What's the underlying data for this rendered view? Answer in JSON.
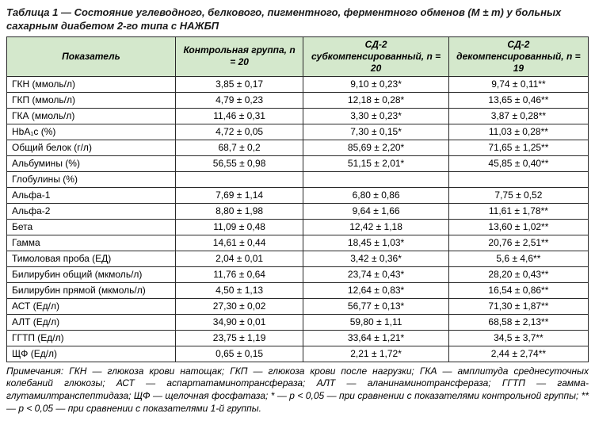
{
  "caption": "Таблица 1 — Состояние углеводного, белкового, пигментного, ферментного обменов (M ± m) у больных сахарным диабетом 2-го типа с НАЖБП",
  "headers": {
    "c0": "Показатель",
    "c1": "Контрольная группа, n = 20",
    "c2": "СД-2 субкомпенсированный, n = 20",
    "c3": "СД-2 декомпенсированный, n = 19"
  },
  "rows": [
    {
      "label": "ГКН (ммоль/л)",
      "v1": "3,85 ± 0,17",
      "v2": "9,10 ± 0,23*",
      "v3": "9,74 ± 0,11**"
    },
    {
      "label": "ГКП (ммоль/л)",
      "v1": "4,79 ± 0,23",
      "v2": "12,18 ± 0,28*",
      "v3": "13,65 ± 0,46**"
    },
    {
      "label": "ГКА (ммоль/л)",
      "v1": "11,46 ± 0,31",
      "v2": "3,30 ± 0,23*",
      "v3": "3,87 ± 0,28**"
    },
    {
      "label": "HbA₁c (%)",
      "v1": "4,72 ± 0,05",
      "v2": "7,30 ± 0,15*",
      "v3": "11,03 ± 0,28**"
    },
    {
      "label": "Общий белок (г/л)",
      "v1": "68,7 ± 0,2",
      "v2": "85,69 ± 2,20*",
      "v3": "71,65 ± 1,25**"
    },
    {
      "label": "Альбумины (%)",
      "v1": "56,55 ± 0,98",
      "v2": "51,15 ± 2,01*",
      "v3": "45,85 ± 0,40**"
    },
    {
      "label": "Глобулины (%)",
      "v1": "",
      "v2": "",
      "v3": ""
    },
    {
      "label": "Альфа-1",
      "v1": "7,69 ± 1,14",
      "v2": "6,80 ± 0,86",
      "v3": "7,75 ± 0,52"
    },
    {
      "label": "Альфа-2",
      "v1": "8,80 ± 1,98",
      "v2": "9,64 ± 1,66",
      "v3": "11,61 ± 1,78**"
    },
    {
      "label": "Бета",
      "v1": "11,09 ± 0,48",
      "v2": "12,42 ± 1,18",
      "v3": "13,60 ± 1,02**"
    },
    {
      "label": "Гамма",
      "v1": "14,61 ± 0,44",
      "v2": "18,45 ± 1,03*",
      "v3": "20,76 ± 2,51**"
    },
    {
      "label": "Тимоловая проба (ЕД)",
      "v1": "2,04 ± 0,01",
      "v2": "3,42 ± 0,36*",
      "v3": "5,6 ± 4,6**"
    },
    {
      "label": "Билирубин общий (мкмоль/л)",
      "v1": "11,76 ± 0,64",
      "v2": "23,74 ± 0,43*",
      "v3": "28,20 ± 0,43**"
    },
    {
      "label": "Билирубин прямой (мкмоль/л)",
      "v1": "4,50 ± 1,13",
      "v2": "12,64 ± 0,83*",
      "v3": "16,54 ± 0,86**"
    },
    {
      "label": "АСТ (Ед/л)",
      "v1": "27,30 ± 0,02",
      "v2": "56,77 ± 0,13*",
      "v3": "71,30 ± 1,87**"
    },
    {
      "label": "АЛТ (Ед/л)",
      "v1": "34,90 ± 0,01",
      "v2": "59,80 ± 1,11",
      "v3": "68,58 ± 2,13**"
    },
    {
      "label": "ГГТП (Ед/л)",
      "v1": "23,75 ± 1,19",
      "v2": "33,64 ± 1,21*",
      "v3": "34,5 ± 3,7**"
    },
    {
      "label": "ЩФ (Ед/л)",
      "v1": "0,65 ± 0,15",
      "v2": "2,21 ± 1,72*",
      "v3": "2,44 ± 2,74**"
    }
  ],
  "notes": "Примечания: ГКН — глюкоза крови натощак; ГКП — глюкоза крови после нагрузки; ГКА — амплитуда среднесуточных колебаний глюкозы; АСТ — аспартатаминотрансфераза; АЛТ — аланинаминотрансфераза; ГГТП — гамма-глутамилтранспептидаза; ЩФ — щелочная фосфатаза; * — р < 0,05 — при сравнении с показателями контрольной группы; ** — р < 0,05 — при сравнении с показателями 1-й группы."
}
